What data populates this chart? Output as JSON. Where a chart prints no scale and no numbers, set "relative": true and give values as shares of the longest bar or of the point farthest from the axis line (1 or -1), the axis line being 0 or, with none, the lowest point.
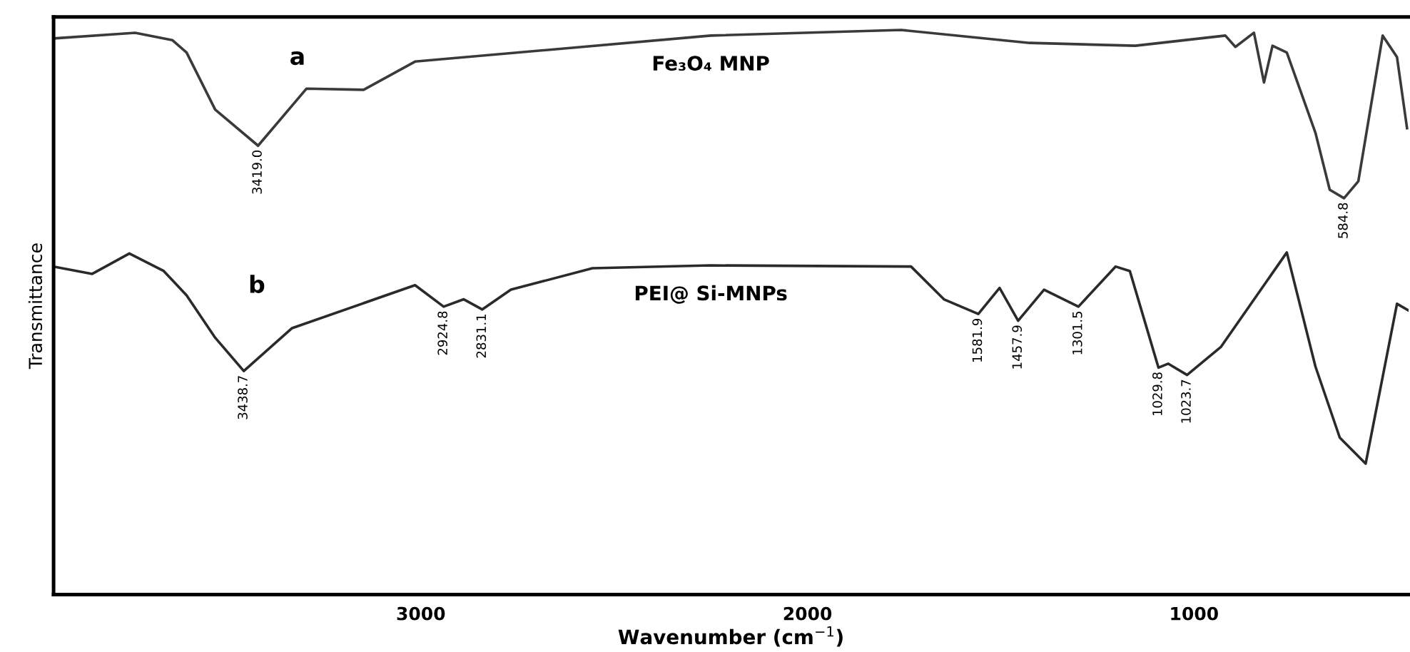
{
  "chart_data": {
    "type": "line",
    "relative": true,
    "xlabel": "Wavenumber (cm$^{−1}$)",
    "ylabel": "Transmittance",
    "xlim": [
      3950,
      445
    ],
    "xticks": [
      3000,
      2000,
      1000
    ],
    "grid": false,
    "legend": false,
    "marker": "none",
    "line_style": "solid",
    "series": [
      {
        "name": "Fe₃O₄ MNP",
        "color": "#3a3a3a",
        "x": [
          3950,
          3739,
          3643,
          3606,
          3532,
          3421,
          3296,
          3148,
          3015,
          2250,
          1758,
          1425,
          1152,
          919,
          893,
          845,
          819,
          797,
          760,
          686,
          649,
          612,
          575,
          512,
          475,
          449
        ],
        "values": [
          0.985,
          0.995,
          0.982,
          0.96,
          0.859,
          0.795,
          0.896,
          0.894,
          0.944,
          0.99,
          1.0,
          0.977,
          0.972,
          0.99,
          0.97,
          0.995,
          0.907,
          0.972,
          0.96,
          0.818,
          0.717,
          0.702,
          0.732,
          0.99,
          0.952,
          0.826
        ]
      },
      {
        "name": "PEI@ Si-MNPs",
        "color": "#2a2a2a",
        "x": [
          3950,
          3850,
          3754,
          3665,
          3606,
          3532,
          3458,
          3333,
          3015,
          2941,
          2889,
          2841,
          2767,
          2556,
          2250,
          1732,
          1647,
          1558,
          1503,
          1455,
          1388,
          1299,
          1203,
          1166,
          1092,
          1067,
          1018,
          930,
          760,
          686,
          623,
          556,
          475,
          445
        ],
        "values": [
          0.581,
          0.568,
          0.604,
          0.573,
          0.53,
          0.455,
          0.396,
          0.472,
          0.548,
          0.51,
          0.523,
          0.505,
          0.54,
          0.578,
          0.583,
          0.581,
          0.523,
          0.497,
          0.543,
          0.485,
          0.54,
          0.51,
          0.581,
          0.573,
          0.402,
          0.409,
          0.389,
          0.439,
          0.606,
          0.404,
          0.278,
          0.232,
          0.515,
          0.503
        ]
      }
    ],
    "annotations": [
      "a",
      "b",
      {
        "text": "3419.0",
        "x": 3421,
        "y": 0.795
      },
      {
        "text": "584.8",
        "x": 612,
        "y": 0.702
      },
      {
        "text": "3438.7",
        "x": 3458,
        "y": 0.396
      },
      {
        "text": "2924.8",
        "x": 2941,
        "y": 0.51
      },
      {
        "text": "2831.1",
        "x": 2841,
        "y": 0.505
      },
      {
        "text": "1581.9",
        "x": 1558,
        "y": 0.497
      },
      {
        "text": "1457.9",
        "x": 1455,
        "y": 0.485
      },
      {
        "text": "1301.5",
        "x": 1299,
        "y": 0.51
      },
      {
        "text": "1029.8",
        "x": 1092,
        "y": 0.402
      },
      {
        "text": "1023.7",
        "x": 1018,
        "y": 0.389
      }
    ]
  }
}
